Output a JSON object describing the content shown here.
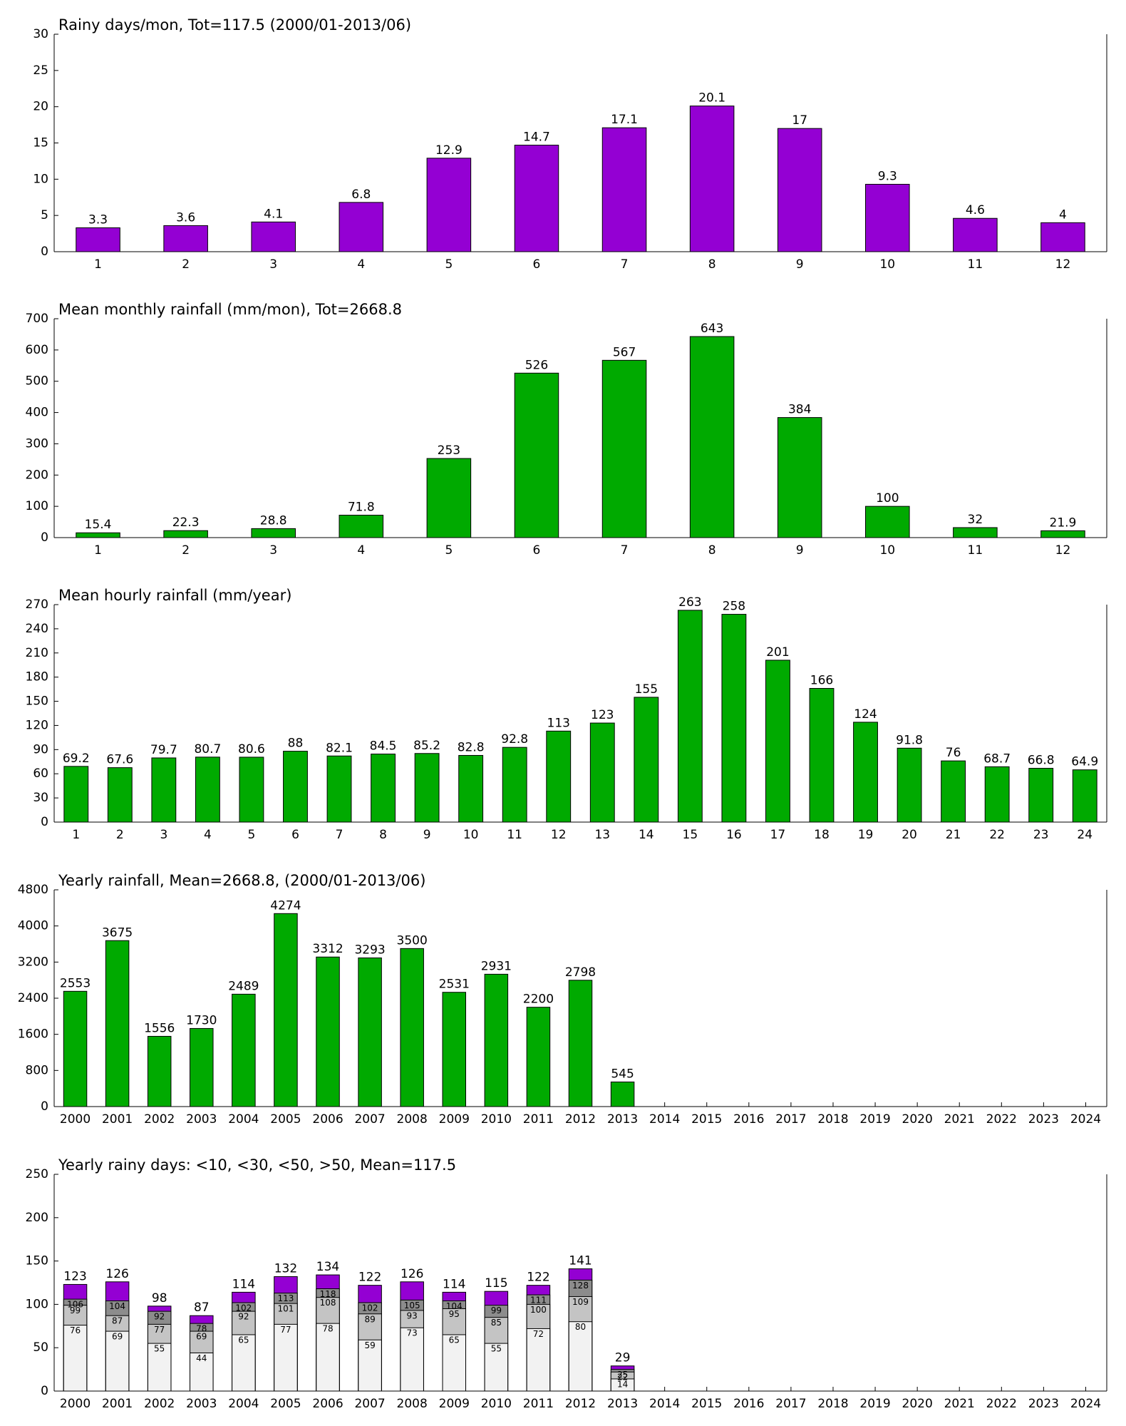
{
  "chart_data": [
    {
      "type": "bar",
      "title": "Rainy days/mon, Tot=117.5 (2000/01-2013/06)",
      "categories": [
        "1",
        "2",
        "3",
        "4",
        "5",
        "6",
        "7",
        "8",
        "9",
        "10",
        "11",
        "12"
      ],
      "values": [
        3.3,
        3.6,
        4.1,
        6.8,
        12.9,
        14.7,
        17.1,
        20.1,
        17,
        9.3,
        4.6,
        4
      ],
      "color": "#9400d3",
      "ylim": [
        0,
        30
      ],
      "yticks": [
        0,
        5,
        10,
        15,
        20,
        25,
        30
      ]
    },
    {
      "type": "bar",
      "title": "Mean monthly rainfall (mm/mon), Tot=2668.8",
      "categories": [
        "1",
        "2",
        "3",
        "4",
        "5",
        "6",
        "7",
        "8",
        "9",
        "10",
        "11",
        "12"
      ],
      "values": [
        15.4,
        22.3,
        28.8,
        71.8,
        253,
        526,
        567,
        643,
        384,
        100,
        32,
        21.9
      ],
      "color": "#00aa00",
      "ylim": [
        0,
        700
      ],
      "yticks": [
        0,
        100,
        200,
        300,
        400,
        500,
        600,
        700
      ]
    },
    {
      "type": "bar",
      "title": "Mean hourly rainfall (mm/year)",
      "categories": [
        "1",
        "2",
        "3",
        "4",
        "5",
        "6",
        "7",
        "8",
        "9",
        "10",
        "11",
        "12",
        "13",
        "14",
        "15",
        "16",
        "17",
        "18",
        "19",
        "20",
        "21",
        "22",
        "23",
        "24"
      ],
      "values": [
        69.2,
        67.6,
        79.7,
        80.7,
        80.6,
        88,
        82.1,
        84.5,
        85.2,
        82.8,
        92.8,
        113,
        123,
        155,
        263,
        258,
        201,
        166,
        124,
        91.8,
        76,
        68.7,
        66.8,
        64.9
      ],
      "color": "#00aa00",
      "ylim": [
        0,
        270
      ],
      "yticks": [
        0,
        30,
        60,
        90,
        120,
        150,
        180,
        210,
        240,
        270
      ]
    },
    {
      "type": "bar",
      "title": "Yearly rainfall, Mean=2668.8, (2000/01-2013/06)",
      "categories": [
        "2000",
        "2001",
        "2002",
        "2003",
        "2004",
        "2005",
        "2006",
        "2007",
        "2008",
        "2009",
        "2010",
        "2011",
        "2012",
        "2013",
        "2014",
        "2015",
        "2016",
        "2017",
        "2018",
        "2019",
        "2020",
        "2021",
        "2022",
        "2023",
        "2024"
      ],
      "values": [
        2553,
        3675,
        1556,
        1730,
        2489,
        4274,
        3312,
        3293,
        3500,
        2531,
        2931,
        2200,
        2798,
        545,
        null,
        null,
        null,
        null,
        null,
        null,
        null,
        null,
        null,
        null,
        null
      ],
      "color": "#00aa00",
      "ylim": [
        0,
        4800
      ],
      "yticks": [
        0,
        800,
        1600,
        2400,
        3200,
        4000,
        4800
      ]
    },
    {
      "type": "bar",
      "barmode": "overlay",
      "title": "Yearly rainy days: <10, <30, <50, >50, Mean=117.5",
      "categories": [
        "2000",
        "2001",
        "2002",
        "2003",
        "2004",
        "2005",
        "2006",
        "2007",
        "2008",
        "2009",
        "2010",
        "2011",
        "2012",
        "2013",
        "2014",
        "2015",
        "2016",
        "2017",
        "2018",
        "2019",
        "2020",
        "2021",
        "2022",
        "2023",
        "2024"
      ],
      "series": [
        {
          "color": "#9400d3",
          "values": [
            123,
            126,
            98,
            87,
            114,
            132,
            134,
            122,
            126,
            114,
            115,
            122,
            141,
            29,
            null,
            null,
            null,
            null,
            null,
            null,
            null,
            null,
            null,
            null,
            null
          ]
        },
        {
          "color": "#8c8c8c",
          "values": [
            106,
            104,
            92,
            78,
            102,
            113,
            118,
            102,
            105,
            104,
            99,
            111,
            128,
            25,
            null,
            null,
            null,
            null,
            null,
            null,
            null,
            null,
            null,
            null,
            null
          ]
        },
        {
          "color": "#c4c4c4",
          "values": [
            99,
            87,
            77,
            69,
            92,
            101,
            108,
            89,
            93,
            95,
            85,
            100,
            109,
            22,
            null,
            null,
            null,
            null,
            null,
            null,
            null,
            null,
            null,
            null,
            null
          ]
        },
        {
          "color": "#f2f2f2",
          "values": [
            76,
            69,
            55,
            44,
            65,
            77,
            78,
            59,
            73,
            65,
            55,
            72,
            80,
            14,
            null,
            null,
            null,
            null,
            null,
            null,
            null,
            null,
            null,
            null,
            null
          ]
        }
      ],
      "ylim": [
        0,
        250
      ],
      "yticks": [
        0,
        50,
        100,
        150,
        200,
        250
      ]
    }
  ]
}
